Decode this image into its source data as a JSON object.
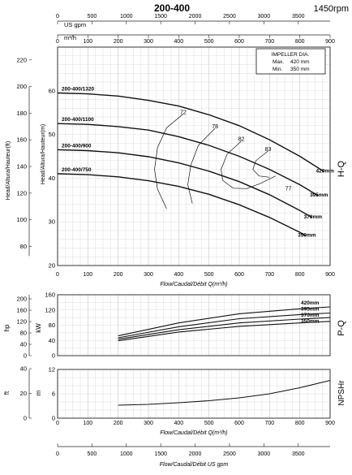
{
  "header": {
    "model": "200-400",
    "speed": "1450rpm"
  },
  "top_axis": {
    "us_gpm_label": "US gpm",
    "us_gpm_ticks": [
      "0",
      "500",
      "1000",
      "1500",
      "2000",
      "2500",
      "3000",
      "3500"
    ],
    "m3h_label": "m³/h",
    "m3h_ticks": [
      "0",
      "100",
      "200",
      "300",
      "400",
      "500",
      "600",
      "700",
      "800",
      "900"
    ]
  },
  "bottom_axis": {
    "us_gpm_ticks": [
      "0",
      "500",
      "1000",
      "1500",
      "2000",
      "2500",
      "3000",
      "3500"
    ],
    "label": "Flow/Caudal/Débit  US gpm"
  },
  "impeller_box": {
    "title": "IMPELLER DIA.",
    "max_label": "Max.",
    "max_value": "420  mm",
    "min_label": "Min.",
    "min_value": "350  mm"
  },
  "chart_data": [
    {
      "type": "line",
      "name": "H-Q",
      "side_label": "H-Q",
      "xlabel": "Flow/Caudal/Débit Q(m³/h)",
      "ylabel_m": "Head/Altura/Hauteur(m)",
      "ylabel_ft": "Head/Altura/Hauteur(ft)",
      "xlim": [
        0,
        900
      ],
      "ylim": [
        20,
        70
      ],
      "x_ticks": [
        "0",
        "100",
        "200",
        "300",
        "400",
        "500",
        "600",
        "700",
        "800",
        "900"
      ],
      "y_ticks_m": [
        "20",
        "30",
        "40",
        "50",
        "60"
      ],
      "y_ticks_ft": [
        "80",
        "100",
        "120",
        "140",
        "160",
        "180",
        "200",
        "220"
      ],
      "series": [
        {
          "name": "420mm",
          "label": "200-400/1320",
          "x": [
            0,
            100,
            200,
            300,
            400,
            500,
            600,
            700,
            800,
            880
          ],
          "y": [
            59.5,
            59.3,
            58.8,
            57.8,
            56.5,
            54.5,
            52.0,
            48.8,
            45.0,
            41.5
          ]
        },
        {
          "name": "395mm",
          "label": "200-400/1100",
          "x": [
            0,
            100,
            200,
            300,
            400,
            500,
            600,
            700,
            800,
            860
          ],
          "y": [
            52.5,
            52.3,
            51.8,
            51.0,
            49.5,
            47.5,
            45.0,
            42.0,
            38.5,
            36.0
          ]
        },
        {
          "name": "370mm",
          "label": "200-400/900",
          "x": [
            0,
            100,
            200,
            300,
            400,
            500,
            600,
            700,
            800,
            840
          ],
          "y": [
            46.5,
            46.3,
            45.8,
            44.9,
            43.5,
            41.6,
            39.2,
            36.2,
            32.6,
            31.0
          ]
        },
        {
          "name": "350mm",
          "label": "200-400/750",
          "x": [
            0,
            100,
            200,
            300,
            400,
            500,
            600,
            700,
            800,
            820
          ],
          "y": [
            41.0,
            40.8,
            40.3,
            39.4,
            38.1,
            36.3,
            33.9,
            31.0,
            27.6,
            26.8
          ]
        }
      ],
      "efficiency_labels": [
        "72",
        "78",
        "82",
        "83",
        "77"
      ],
      "efficiency_label_points": [
        [
          415,
          54.7
        ],
        [
          520,
          51.4
        ],
        [
          607,
          48.5
        ],
        [
          695,
          46.2
        ],
        [
          762,
          37.2
        ]
      ],
      "efficiency_curves": [
        {
          "name": "72",
          "x": [
            415,
            360,
            330,
            320,
            330,
            360
          ],
          "y": [
            54.7,
            51.5,
            47.0,
            42.0,
            37.5,
            33.0
          ]
        },
        {
          "name": "78",
          "x": [
            520,
            465,
            440,
            430,
            445
          ],
          "y": [
            51.4,
            47.5,
            43.0,
            38.5,
            34.2
          ]
        },
        {
          "name": "82",
          "x": [
            607,
            560,
            540,
            545,
            580,
            625,
            670,
            720
          ],
          "y": [
            48.5,
            45.5,
            42.0,
            39.5,
            37.7,
            37.6,
            38.8,
            40.5
          ]
        },
        {
          "name": "83",
          "x": [
            695,
            655,
            645,
            665,
            700
          ],
          "y": [
            46.2,
            44.0,
            42.0,
            40.5,
            40.2
          ]
        }
      ]
    },
    {
      "type": "line",
      "name": "P-Q",
      "side_label": "P-Q",
      "ylabel_kw": "kW",
      "ylabel_hp": "hp",
      "xlim": [
        0,
        900
      ],
      "ylim": [
        0,
        160
      ],
      "y_ticks_kw": [
        "0",
        "40",
        "80",
        "120",
        "160"
      ],
      "y_ticks_hp": [
        "0",
        "40",
        "80",
        "120",
        "160",
        "200"
      ],
      "series": [
        {
          "name": "420mm",
          "x": [
            200,
            400,
            600,
            800,
            900
          ],
          "y": [
            52,
            86,
            110,
            123,
            128
          ]
        },
        {
          "name": "395mm",
          "x": [
            200,
            400,
            600,
            800,
            900
          ],
          "y": [
            47,
            76,
            97,
            108,
            112
          ]
        },
        {
          "name": "370mm",
          "x": [
            200,
            400,
            600,
            800,
            900
          ],
          "y": [
            43,
            68,
            86,
            96,
            100
          ]
        },
        {
          "name": "350mm",
          "x": [
            200,
            400,
            600,
            800,
            900
          ],
          "y": [
            39,
            62,
            77,
            86,
            90
          ]
        }
      ]
    },
    {
      "type": "line",
      "name": "NPSHr",
      "side_label": "NPSHr",
      "ylabel_m": "m",
      "ylabel_ft": "ft",
      "xlim": [
        0,
        900
      ],
      "ylim": [
        0,
        12
      ],
      "y_ticks_m": [
        "0",
        "6",
        "12"
      ],
      "y_ticks_ft": [
        "0",
        "20",
        "40"
      ],
      "series": [
        {
          "name": "NPSHr",
          "x": [
            200,
            300,
            400,
            500,
            600,
            700,
            800,
            900
          ],
          "y": [
            3.2,
            3.4,
            3.8,
            4.3,
            5.0,
            6.0,
            7.5,
            9.3
          ]
        }
      ]
    }
  ]
}
